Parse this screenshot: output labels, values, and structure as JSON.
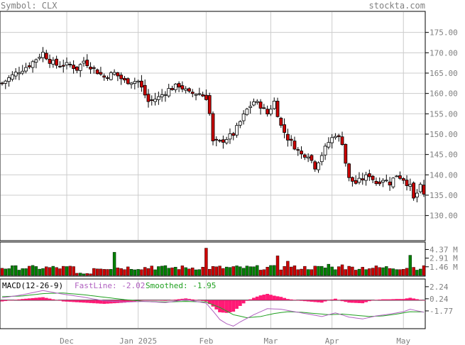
{
  "header": {
    "symbol_label": "Symbol: CLX",
    "site": "stockta.com"
  },
  "colors": {
    "up": "#ffffff",
    "down": "#cc0000",
    "vol_up": "#008000",
    "vol_down": "#cc0000",
    "fastline": "#b060c0",
    "smoothed": "#20a020",
    "hist": "#ff1a75",
    "grid": "#cccccc",
    "frame": "#000000",
    "label": "#808080"
  },
  "chart_data": [
    {
      "type": "candlestick",
      "title": "Symbol: CLX",
      "ylim": [
        124,
        180
      ],
      "y_ticks": [
        175.0,
        170.0,
        165.0,
        160.0,
        155.0,
        150.0,
        145.0,
        140.0,
        135.0,
        130.0
      ],
      "y_tick_labels": [
        "175.00",
        "170.00",
        "165.00",
        "160.00",
        "155.00",
        "150.00",
        "145.00",
        "140.00",
        "135.00",
        "130.00"
      ],
      "x_labels": [
        {
          "label": "Dec",
          "index": 19
        },
        {
          "label": "Jan 2025",
          "index": 40
        },
        {
          "label": "Feb",
          "index": 60
        },
        {
          "label": "Mar",
          "index": 79
        },
        {
          "label": "Apr",
          "index": 97
        },
        {
          "label": "May",
          "index": 118
        }
      ],
      "grid": true,
      "anchors": [
        [
          0,
          162.5
        ],
        [
          4,
          165
        ],
        [
          8,
          167
        ],
        [
          12,
          170
        ],
        [
          14,
          168
        ],
        [
          16,
          167
        ],
        [
          20,
          167
        ],
        [
          22,
          166
        ],
        [
          24,
          168
        ],
        [
          27,
          166
        ],
        [
          30,
          164
        ],
        [
          33,
          165
        ],
        [
          36,
          163
        ],
        [
          40,
          163
        ],
        [
          43,
          158
        ],
        [
          46,
          159
        ],
        [
          49,
          161
        ],
        [
          52,
          162
        ],
        [
          55,
          160
        ],
        [
          58,
          160
        ],
        [
          60,
          159
        ],
        [
          61,
          155
        ],
        [
          62,
          148
        ],
        [
          64,
          148
        ],
        [
          66,
          149
        ],
        [
          68,
          150
        ],
        [
          70,
          153
        ],
        [
          72,
          156
        ],
        [
          74,
          158
        ],
        [
          76,
          157
        ],
        [
          78,
          155
        ],
        [
          80,
          158
        ],
        [
          82,
          152
        ],
        [
          84,
          149
        ],
        [
          86,
          147
        ],
        [
          88,
          145
        ],
        [
          90,
          145
        ],
        [
          92,
          142
        ],
        [
          94,
          145
        ],
        [
          96,
          148
        ],
        [
          98,
          150
        ],
        [
          100,
          148
        ],
        [
          101,
          143
        ],
        [
          102,
          139
        ],
        [
          104,
          138
        ],
        [
          106,
          139
        ],
        [
          108,
          140
        ],
        [
          110,
          138
        ],
        [
          112,
          139
        ],
        [
          114,
          138
        ],
        [
          116,
          140
        ],
        [
          118,
          139
        ],
        [
          120,
          137
        ],
        [
          121,
          134
        ],
        [
          123,
          137
        ],
        [
          124,
          135
        ]
      ]
    },
    {
      "type": "bar",
      "title": "Volume",
      "y_tick_labels": [
        "4.37 M",
        "2.91 M",
        "1.46 M"
      ],
      "y_ticks": [
        4.37,
        2.91,
        1.46
      ],
      "ylim": [
        0,
        5.5
      ],
      "spikes": [
        [
          33,
          3.9
        ],
        [
          60,
          4.6
        ],
        [
          81,
          3.3
        ],
        [
          120,
          3.4
        ],
        [
          96,
          1.9
        ],
        [
          84,
          2.4
        ],
        [
          100,
          1.8
        ],
        [
          44,
          1.6
        ],
        [
          46,
          1.5
        ]
      ]
    },
    {
      "type": "line",
      "title": "MACD(12-26-9)",
      "series_labels": {
        "macd": "MACD(12-26-9)",
        "fast": "FastLine: -2.02",
        "smoothed": "Smoothed: -1.95"
      },
      "y_ticks": [
        2.24,
        0.24,
        -1.77
      ],
      "y_tick_labels": [
        "2.24",
        "0.24",
        "-1.77"
      ],
      "ylim": [
        -4.6,
        3.4
      ],
      "fast_anchors": [
        [
          0,
          0.4
        ],
        [
          6,
          0.9
        ],
        [
          12,
          1.6
        ],
        [
          18,
          1.0
        ],
        [
          24,
          0.5
        ],
        [
          30,
          -0.1
        ],
        [
          36,
          -0.3
        ],
        [
          42,
          -0.2
        ],
        [
          48,
          -0.4
        ],
        [
          54,
          0.1
        ],
        [
          60,
          -0.5
        ],
        [
          62,
          -1.8
        ],
        [
          64,
          -3.2
        ],
        [
          66,
          -3.9
        ],
        [
          68,
          -4.3
        ],
        [
          70,
          -3.6
        ],
        [
          74,
          -2.4
        ],
        [
          78,
          -1.4
        ],
        [
          82,
          -1.5
        ],
        [
          86,
          -1.9
        ],
        [
          90,
          -2.3
        ],
        [
          94,
          -2.7
        ],
        [
          98,
          -2.1
        ],
        [
          102,
          -2.8
        ],
        [
          106,
          -3.1
        ],
        [
          110,
          -2.6
        ],
        [
          114,
          -2.3
        ],
        [
          118,
          -1.9
        ],
        [
          120,
          -1.5
        ],
        [
          124,
          -2.0
        ]
      ],
      "smooth_anchors": [
        [
          0,
          0.6
        ],
        [
          6,
          0.7
        ],
        [
          12,
          1.1
        ],
        [
          18,
          1.2
        ],
        [
          24,
          0.9
        ],
        [
          30,
          0.5
        ],
        [
          36,
          0.1
        ],
        [
          42,
          -0.2
        ],
        [
          48,
          -0.3
        ],
        [
          54,
          -0.2
        ],
        [
          60,
          -0.3
        ],
        [
          64,
          -1.2
        ],
        [
          68,
          -2.4
        ],
        [
          72,
          -2.9
        ],
        [
          76,
          -2.7
        ],
        [
          80,
          -2.2
        ],
        [
          84,
          -1.9
        ],
        [
          88,
          -2.0
        ],
        [
          92,
          -2.2
        ],
        [
          96,
          -2.4
        ],
        [
          100,
          -2.3
        ],
        [
          104,
          -2.5
        ],
        [
          108,
          -2.7
        ],
        [
          112,
          -2.6
        ],
        [
          116,
          -2.3
        ],
        [
          120,
          -1.9
        ],
        [
          124,
          -1.95
        ]
      ]
    }
  ]
}
